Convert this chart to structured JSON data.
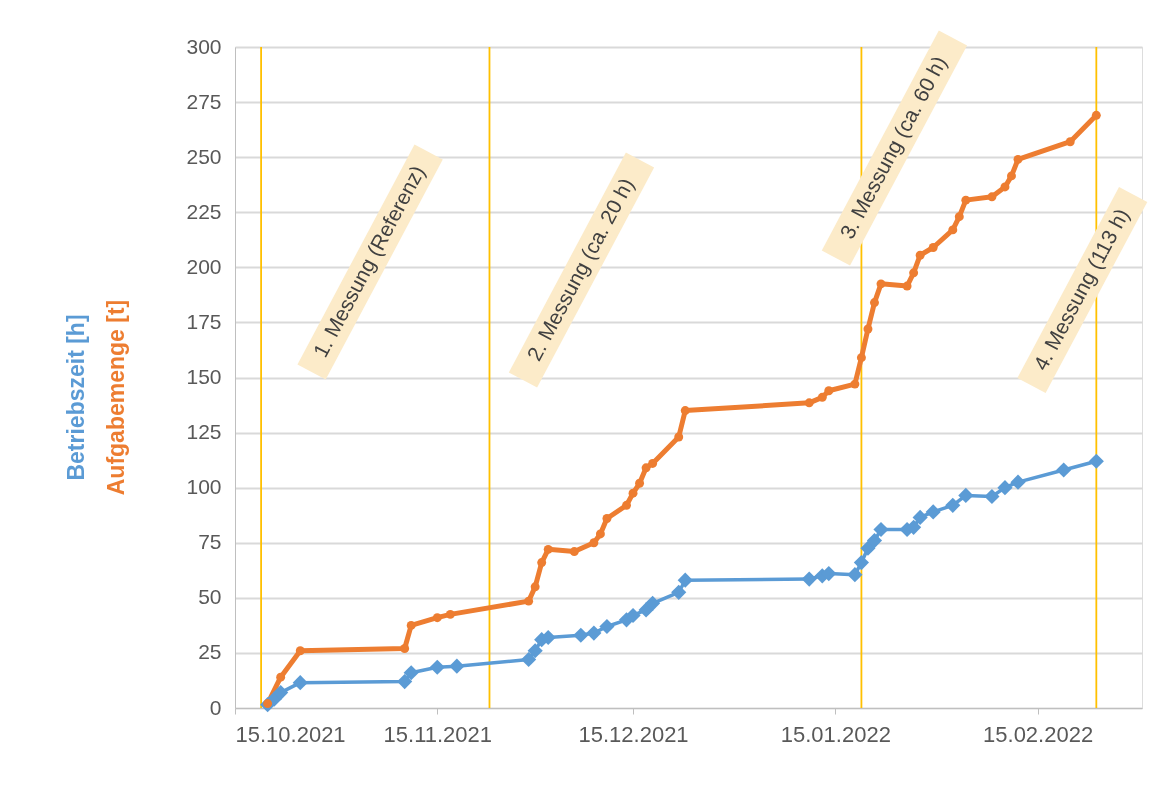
{
  "chart_data": {
    "type": "line",
    "xlim": [
      "2021-10-15",
      "2022-03-03"
    ],
    "xticks": [
      {
        "value": "2021-10-15",
        "label": "15.10.2021"
      },
      {
        "value": "2021-11-15",
        "label": "15.11.2021"
      },
      {
        "value": "2021-12-15",
        "label": "15.12.2021"
      },
      {
        "value": "2022-01-15",
        "label": "15.01.2022"
      },
      {
        "value": "2022-02-15",
        "label": "15.02.2022"
      }
    ],
    "ylim": [
      0,
      300
    ],
    "yticks": [
      0,
      25,
      50,
      75,
      100,
      125,
      150,
      175,
      200,
      225,
      250,
      275,
      300
    ],
    "grid": "y",
    "series": [
      {
        "name": "Betriebszeit  [h]",
        "color": "#5b9bd5",
        "marker": "diamond",
        "x": [
          "2021-10-20",
          "2021-10-21",
          "2021-10-22",
          "2021-10-25",
          "2021-11-10",
          "2021-11-11",
          "2021-11-15",
          "2021-11-18",
          "2021-11-29",
          "2021-11-30",
          "2021-12-01",
          "2021-12-02",
          "2021-12-07",
          "2021-12-09",
          "2021-12-11",
          "2021-12-14",
          "2021-12-15",
          "2021-12-17",
          "2021-12-18",
          "2021-12-22",
          "2021-12-23",
          "2022-01-11",
          "2022-01-13",
          "2022-01-14",
          "2022-01-18",
          "2022-01-19",
          "2022-01-20",
          "2022-01-21",
          "2022-01-22",
          "2022-01-26",
          "2022-01-27",
          "2022-01-28",
          "2022-01-30",
          "2022-02-02",
          "2022-02-04",
          "2022-02-08",
          "2022-02-10",
          "2022-02-12",
          "2022-02-19",
          "2022-02-24"
        ],
        "values": [
          1.5,
          4,
          7,
          11.5,
          12,
          16,
          18.5,
          19,
          22,
          26,
          31,
          32,
          33,
          34,
          37,
          40,
          42,
          44.5,
          47.5,
          52.5,
          58,
          58.5,
          60,
          61,
          60.5,
          66,
          72.5,
          76,
          81,
          81,
          82,
          86.5,
          89,
          92,
          96.5,
          96,
          100,
          102.5,
          108,
          112
        ]
      },
      {
        "name": "Aufgabemenge [t]",
        "color": "#ed7d31",
        "marker": "circle",
        "x": [
          "2021-10-20",
          "2021-10-22",
          "2021-10-25",
          "2021-11-10",
          "2021-11-11",
          "2021-11-15",
          "2021-11-17",
          "2021-11-29",
          "2021-11-30",
          "2021-12-01",
          "2021-12-02",
          "2021-12-06",
          "2021-12-09",
          "2021-12-10",
          "2021-12-11",
          "2021-12-14",
          "2021-12-15",
          "2021-12-16",
          "2021-12-17",
          "2021-12-18",
          "2021-12-22",
          "2021-12-23",
          "2022-01-11",
          "2022-01-13",
          "2022-01-14",
          "2022-01-18",
          "2022-01-19",
          "2022-01-20",
          "2022-01-21",
          "2022-01-22",
          "2022-01-26",
          "2022-01-27",
          "2022-01-28",
          "2022-01-30",
          "2022-02-02",
          "2022-02-03",
          "2022-02-04",
          "2022-02-08",
          "2022-02-10",
          "2022-02-11",
          "2022-02-12",
          "2022-02-20",
          "2022-02-24"
        ],
        "values": [
          2,
          14,
          26,
          27,
          37.5,
          41,
          42.5,
          48.5,
          55,
          66,
          72,
          71,
          75,
          79,
          86,
          92,
          97.5,
          102,
          109,
          111,
          123,
          135,
          138.5,
          141,
          144,
          147,
          159,
          172,
          184,
          192.5,
          191.5,
          197.5,
          205.5,
          209,
          217,
          223,
          230.5,
          232,
          236.5,
          241.5,
          249,
          257,
          269
        ]
      }
    ],
    "ref_lines": [
      {
        "axis": "x",
        "value": "2021-10-19",
        "color": "#ffc000",
        "label": "1. Messung (Referenz)"
      },
      {
        "axis": "x",
        "value": "2021-11-23",
        "color": "#ffc000",
        "label": "2. Messung (ca. 20 h)"
      },
      {
        "axis": "x",
        "value": "2022-01-19",
        "color": "#ffc000",
        "label": "3. Messung (ca. 60 h)"
      },
      {
        "axis": "x",
        "value": "2022-02-24",
        "color": "#ffc000",
        "label": "4. Messung (113 h)"
      }
    ]
  }
}
